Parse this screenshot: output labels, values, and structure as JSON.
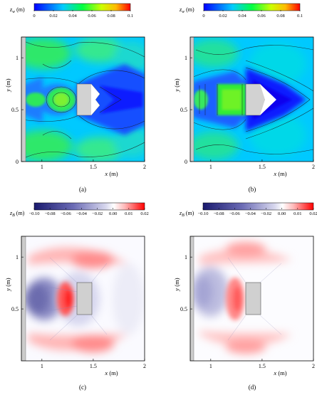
{
  "chart_data": [
    {
      "type": "heatmap",
      "panel_label": "(a)",
      "colorbar_label": "z",
      "colorbar_sub": "w",
      "colorbar_unit": "(m)",
      "colorbar_ticks": [
        "0",
        "0.02",
        "0.04",
        "0.06",
        "0.08",
        "0.1"
      ],
      "colorbar_range": [
        0,
        0.1
      ],
      "colormap": [
        "#0000ff",
        "#00ffff",
        "#00ff00",
        "#ffff00",
        "#ff0000"
      ],
      "xlabel": "x (m)",
      "ylabel": "y (m)",
      "xticks": [
        "1",
        "1.5",
        "2"
      ],
      "yticks": [
        "0",
        "0.5",
        "1"
      ],
      "xlim": [
        0.8,
        2.0
      ],
      "ylim": [
        0,
        1.2
      ],
      "obstacle": {
        "x": [
          1.33,
          1.48
        ],
        "y": [
          0.4,
          0.75
        ]
      }
    },
    {
      "type": "heatmap",
      "panel_label": "(b)",
      "colorbar_label": "z",
      "colorbar_sub": "w",
      "colorbar_unit": "(m)",
      "colorbar_ticks": [
        "0",
        "0.02",
        "0.04",
        "0.06",
        "0.08",
        "0.1"
      ],
      "colorbar_range": [
        0,
        0.1
      ],
      "colormap": [
        "#0000ff",
        "#00ffff",
        "#00ff00",
        "#ffff00",
        "#ff0000"
      ],
      "xlabel": "x (m)",
      "ylabel": "y (m)",
      "xticks": [
        "1",
        "1.5",
        "2"
      ],
      "yticks": [
        "0",
        "0.5",
        "1"
      ],
      "xlim": [
        0.8,
        2.0
      ],
      "ylim": [
        0,
        1.2
      ],
      "obstacle": {
        "x": [
          1.33,
          1.48
        ],
        "y": [
          0.4,
          0.75
        ]
      }
    },
    {
      "type": "heatmap",
      "panel_label": "(c)",
      "colorbar_label": "z",
      "colorbar_sub": "B",
      "colorbar_unit": "(m)",
      "colorbar_ticks": [
        "−0.10",
        "−0.08",
        "−0.06",
        "−0.04",
        "−0.02",
        "0.00",
        "0.01",
        "0.02"
      ],
      "colormap": [
        "#1a1a6e",
        "#9b9bd0",
        "#ffffff",
        "#ff0000"
      ],
      "xlabel": "x (m)",
      "ylabel": "y (m)",
      "xticks": [
        "1",
        "1.5",
        "2"
      ],
      "yticks": [
        "0.5",
        "1"
      ],
      "xlim": [
        0.8,
        2.0
      ],
      "ylim": [
        0,
        1.2
      ],
      "obstacle": {
        "x": [
          1.33,
          1.48
        ],
        "y": [
          0.4,
          0.75
        ]
      }
    },
    {
      "type": "heatmap",
      "panel_label": "(d)",
      "colorbar_label": "z",
      "colorbar_sub": "B",
      "colorbar_unit": "(m)",
      "colorbar_ticks": [
        "−0.10",
        "−0.08",
        "−0.06",
        "−0.04",
        "−0.02",
        "0.00",
        "0.01",
        "0.02"
      ],
      "colormap": [
        "#1a1a6e",
        "#9b9bd0",
        "#ffffff",
        "#ff0000"
      ],
      "xlabel": "x (m)",
      "ylabel": "y (m)",
      "xticks": [
        "1",
        "1.5",
        "2"
      ],
      "yticks": [
        "0.5",
        "1"
      ],
      "xlim": [
        0.8,
        2.0
      ],
      "ylim": [
        0,
        1.2
      ],
      "obstacle": {
        "x": [
          1.33,
          1.48
        ],
        "y": [
          0.4,
          0.75
        ]
      }
    }
  ]
}
